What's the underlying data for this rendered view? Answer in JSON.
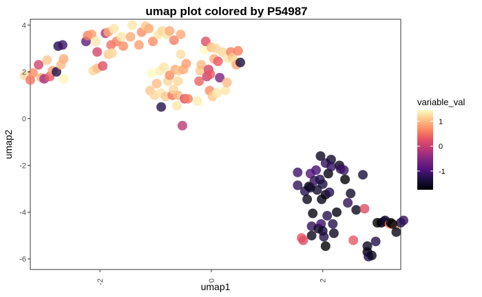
{
  "chart_data": {
    "type": "scatter",
    "title": "umap plot colored by P54987",
    "xlabel": "umap1",
    "ylabel": "umap2",
    "xlim": [
      -3.25,
      3.4
    ],
    "ylim": [
      -6.45,
      4.25
    ],
    "x_ticks": [
      -2,
      0,
      2
    ],
    "y_ticks": [
      4,
      2,
      0,
      -2,
      -4,
      -6
    ],
    "x_tick_labels": [
      "-2",
      "0",
      "2"
    ],
    "y_tick_labels": [
      "4",
      "2",
      "0",
      "-2",
      "-4",
      "-6"
    ],
    "grid": false,
    "legend": {
      "title": "variable_val",
      "position": "right",
      "range": [
        -1.75,
        1.45
      ],
      "ticks": [
        1,
        0,
        -1
      ],
      "tick_labels": [
        "1",
        "0",
        "-1"
      ],
      "colormap": "magma"
    },
    "points": [
      {
        "x": -3.35,
        "y": 1.85,
        "v": 1.2
      },
      {
        "x": -3.25,
        "y": 1.65,
        "v": 0.5
      },
      {
        "x": -3.2,
        "y": 1.95,
        "v": 0.7
      },
      {
        "x": -3.1,
        "y": 2.3,
        "v": 0.1
      },
      {
        "x": -3.05,
        "y": 1.75,
        "v": 0.9
      },
      {
        "x": -3.0,
        "y": 1.7,
        "v": -0.3
      },
      {
        "x": -2.95,
        "y": 2.5,
        "v": 1.1
      },
      {
        "x": -2.9,
        "y": 1.8,
        "v": 0.3
      },
      {
        "x": -2.85,
        "y": 2.05,
        "v": 0.8
      },
      {
        "x": -2.78,
        "y": 2.0,
        "v": -1.3
      },
      {
        "x": -2.7,
        "y": 2.3,
        "v": 1.0
      },
      {
        "x": -2.65,
        "y": 2.55,
        "v": 0.9
      },
      {
        "x": -2.65,
        "y": 1.7,
        "v": 1.4
      },
      {
        "x": -2.75,
        "y": 3.1,
        "v": -1.3
      },
      {
        "x": -2.67,
        "y": 3.15,
        "v": -1.1
      },
      {
        "x": -2.25,
        "y": 3.3,
        "v": -0.8
      },
      {
        "x": -2.22,
        "y": 3.55,
        "v": 0.6
      },
      {
        "x": -2.15,
        "y": 3.6,
        "v": 0.8
      },
      {
        "x": -2.12,
        "y": 2.05,
        "v": 1.2
      },
      {
        "x": -2.08,
        "y": 3.3,
        "v": 1.3
      },
      {
        "x": -2.05,
        "y": 2.15,
        "v": 1.0
      },
      {
        "x": -2.05,
        "y": 2.85,
        "v": 0.1
      },
      {
        "x": -1.95,
        "y": 2.25,
        "v": 0.2
      },
      {
        "x": -1.9,
        "y": 3.65,
        "v": -0.2
      },
      {
        "x": -1.85,
        "y": 3.7,
        "v": 0.9
      },
      {
        "x": -1.85,
        "y": 2.75,
        "v": 1.1
      },
      {
        "x": -1.8,
        "y": 3.15,
        "v": 0.5
      },
      {
        "x": -1.78,
        "y": 2.8,
        "v": 1.2
      },
      {
        "x": -1.75,
        "y": 3.85,
        "v": 1.3
      },
      {
        "x": -1.7,
        "y": 3.3,
        "v": 0.6
      },
      {
        "x": -1.62,
        "y": 3.5,
        "v": 1.3
      },
      {
        "x": -1.58,
        "y": 3.1,
        "v": 0.7
      },
      {
        "x": -1.45,
        "y": 3.5,
        "v": 0.9
      },
      {
        "x": -1.42,
        "y": 4.0,
        "v": 1.3
      },
      {
        "x": -1.3,
        "y": 3.15,
        "v": 0.8
      },
      {
        "x": -1.25,
        "y": 3.7,
        "v": 0.7
      },
      {
        "x": -1.18,
        "y": 3.95,
        "v": 1.1
      },
      {
        "x": -1.12,
        "y": 3.85,
        "v": 0.9
      },
      {
        "x": -1.1,
        "y": 1.2,
        "v": 1.1
      },
      {
        "x": -1.07,
        "y": 1.95,
        "v": 1.45
      },
      {
        "x": -1.05,
        "y": 3.3,
        "v": 0.7
      },
      {
        "x": -1.02,
        "y": 1.0,
        "v": 1.2
      },
      {
        "x": -0.98,
        "y": 1.5,
        "v": 1.0
      },
      {
        "x": -0.95,
        "y": 3.6,
        "v": 1.3
      },
      {
        "x": -0.92,
        "y": 2.05,
        "v": 1.35
      },
      {
        "x": -0.9,
        "y": 1.1,
        "v": 1.3
      },
      {
        "x": -0.9,
        "y": 0.5,
        "v": -1.3
      },
      {
        "x": -0.88,
        "y": 3.75,
        "v": 1.2
      },
      {
        "x": -0.85,
        "y": 2.2,
        "v": 1.3
      },
      {
        "x": -0.82,
        "y": 0.95,
        "v": 1.1
      },
      {
        "x": -0.8,
        "y": 3.6,
        "v": 1.3
      },
      {
        "x": -0.78,
        "y": 1.6,
        "v": 1.2
      },
      {
        "x": -0.75,
        "y": 1.85,
        "v": 0.7
      },
      {
        "x": -0.75,
        "y": 3.75,
        "v": 0.9
      },
      {
        "x": -0.7,
        "y": 1.0,
        "v": 0.5
      },
      {
        "x": -0.68,
        "y": 1.25,
        "v": 1.2
      },
      {
        "x": -0.67,
        "y": 3.35,
        "v": 0.6
      },
      {
        "x": -0.65,
        "y": 2.1,
        "v": 0.9
      },
      {
        "x": -0.62,
        "y": 0.55,
        "v": 1.3
      },
      {
        "x": -0.6,
        "y": 1.0,
        "v": 1.0
      },
      {
        "x": -0.6,
        "y": 1.6,
        "v": 1.2
      },
      {
        "x": -0.58,
        "y": 2.05,
        "v": 1.1
      },
      {
        "x": -0.55,
        "y": 3.6,
        "v": 0.9
      },
      {
        "x": -0.55,
        "y": 2.75,
        "v": 1.25
      },
      {
        "x": -0.52,
        "y": -0.3,
        "v": -0.1
      },
      {
        "x": -0.5,
        "y": 2.1,
        "v": 0.9
      },
      {
        "x": -0.48,
        "y": 0.85,
        "v": 0.2
      },
      {
        "x": -0.45,
        "y": 2.35,
        "v": 0.8
      },
      {
        "x": -0.42,
        "y": 0.85,
        "v": 0.6
      },
      {
        "x": -0.25,
        "y": 0.75,
        "v": 1.35
      },
      {
        "x": -0.22,
        "y": 1.6,
        "v": 0.4
      },
      {
        "x": -0.2,
        "y": 2.05,
        "v": 1.1
      },
      {
        "x": -0.18,
        "y": 2.3,
        "v": 1.0
      },
      {
        "x": -0.12,
        "y": 2.95,
        "v": 1.45
      },
      {
        "x": -0.1,
        "y": 3.3,
        "v": 0.2
      },
      {
        "x": -0.08,
        "y": 1.8,
        "v": 0.0
      },
      {
        "x": -0.05,
        "y": 2.1,
        "v": 0.1
      },
      {
        "x": -0.03,
        "y": 1.2,
        "v": 0.7
      },
      {
        "x": -0.02,
        "y": 1.9,
        "v": 0.3
      },
      {
        "x": 0.0,
        "y": 3.05,
        "v": 1.0
      },
      {
        "x": 0.02,
        "y": 0.95,
        "v": 1.1
      },
      {
        "x": 0.05,
        "y": 2.55,
        "v": 0.9
      },
      {
        "x": 0.08,
        "y": 3.0,
        "v": 1.2
      },
      {
        "x": 0.1,
        "y": 1.1,
        "v": 1.3
      },
      {
        "x": 0.12,
        "y": 2.45,
        "v": 0.3
      },
      {
        "x": 0.15,
        "y": 1.75,
        "v": -0.6
      },
      {
        "x": 0.2,
        "y": 2.85,
        "v": 1.2
      },
      {
        "x": 0.25,
        "y": 1.2,
        "v": 1.3
      },
      {
        "x": 0.28,
        "y": 1.55,
        "v": 1.0
      },
      {
        "x": 0.3,
        "y": 2.6,
        "v": 1.3
      },
      {
        "x": 0.35,
        "y": 2.85,
        "v": 0.6
      },
      {
        "x": 0.38,
        "y": 2.6,
        "v": 1.1
      },
      {
        "x": 0.42,
        "y": 2.45,
        "v": 1.25
      },
      {
        "x": 0.45,
        "y": 2.3,
        "v": 0.9
      },
      {
        "x": 0.48,
        "y": 2.9,
        "v": 0.6
      },
      {
        "x": 0.52,
        "y": 2.4,
        "v": -1.4
      },
      {
        "x": 1.55,
        "y": -2.3,
        "v": -1.1
      },
      {
        "x": 1.55,
        "y": -2.85,
        "v": -1.2
      },
      {
        "x": 1.62,
        "y": -5.1,
        "v": 0.3
      },
      {
        "x": 1.65,
        "y": -5.2,
        "v": 0.2
      },
      {
        "x": 1.68,
        "y": -3.1,
        "v": -1.3
      },
      {
        "x": 1.72,
        "y": -3.45,
        "v": -1.6
      },
      {
        "x": 1.75,
        "y": -2.9,
        "v": -1.75
      },
      {
        "x": 1.78,
        "y": -2.35,
        "v": -0.9
      },
      {
        "x": 1.78,
        "y": -2.95,
        "v": -1.5
      },
      {
        "x": 1.8,
        "y": -4.6,
        "v": -1.2
      },
      {
        "x": 1.8,
        "y": -5.0,
        "v": -1.6
      },
      {
        "x": 1.82,
        "y": -4.05,
        "v": -1.7
      },
      {
        "x": 1.85,
        "y": -2.65,
        "v": -1.2
      },
      {
        "x": 1.88,
        "y": -2.2,
        "v": -1.0
      },
      {
        "x": 1.9,
        "y": -3.05,
        "v": -1.5
      },
      {
        "x": 1.92,
        "y": -4.7,
        "v": -1.6
      },
      {
        "x": 1.95,
        "y": -2.6,
        "v": -1.3
      },
      {
        "x": 1.96,
        "y": -1.6,
        "v": -1.55
      },
      {
        "x": 1.97,
        "y": -4.5,
        "v": -1.1
      },
      {
        "x": 1.98,
        "y": -3.45,
        "v": -1.65
      },
      {
        "x": 2.0,
        "y": -2.8,
        "v": -1.4
      },
      {
        "x": 2.0,
        "y": -4.8,
        "v": -1.5
      },
      {
        "x": 2.02,
        "y": -5.05,
        "v": -1.3
      },
      {
        "x": 2.05,
        "y": -3.25,
        "v": -1.7
      },
      {
        "x": 2.05,
        "y": -1.9,
        "v": -1.2
      },
      {
        "x": 2.05,
        "y": -5.45,
        "v": -1.75
      },
      {
        "x": 2.08,
        "y": -4.15,
        "v": -1.3
      },
      {
        "x": 2.1,
        "y": -2.35,
        "v": -1.7
      },
      {
        "x": 2.12,
        "y": -3.15,
        "v": -1.3
      },
      {
        "x": 2.15,
        "y": -1.75,
        "v": -1.5
      },
      {
        "x": 2.15,
        "y": -2.05,
        "v": -1.2
      },
      {
        "x": 2.18,
        "y": -4.5,
        "v": -1.3
      },
      {
        "x": 2.2,
        "y": -4.9,
        "v": -1.6
      },
      {
        "x": 2.25,
        "y": -4.0,
        "v": -1.7
      },
      {
        "x": 2.3,
        "y": -2.0,
        "v": -1.6
      },
      {
        "x": 2.32,
        "y": -2.15,
        "v": -1.2
      },
      {
        "x": 2.38,
        "y": -2.2,
        "v": -1.1
      },
      {
        "x": 2.4,
        "y": -2.6,
        "v": -1.75
      },
      {
        "x": 2.45,
        "y": -3.6,
        "v": -1.2
      },
      {
        "x": 2.5,
        "y": -3.2,
        "v": -1.5
      },
      {
        "x": 2.55,
        "y": -5.2,
        "v": 0.3
      },
      {
        "x": 2.6,
        "y": -3.9,
        "v": -1.6
      },
      {
        "x": 2.72,
        "y": -2.4,
        "v": -1.4
      },
      {
        "x": 2.75,
        "y": -3.85,
        "v": 0.2
      },
      {
        "x": 2.8,
        "y": -5.7,
        "v": -1.75
      },
      {
        "x": 2.8,
        "y": -5.45,
        "v": -1.6
      },
      {
        "x": 2.82,
        "y": -5.9,
        "v": -1.3
      },
      {
        "x": 2.88,
        "y": -5.85,
        "v": -1.6
      },
      {
        "x": 2.95,
        "y": -5.25,
        "v": -1.3
      },
      {
        "x": 3.05,
        "y": -4.45,
        "v": -1.75
      },
      {
        "x": 3.1,
        "y": -4.4,
        "v": -1.3
      },
      {
        "x": 3.12,
        "y": -4.35,
        "v": -1.5
      },
      {
        "x": 3.2,
        "y": -4.5,
        "v": 0.6
      },
      {
        "x": 3.22,
        "y": -4.45,
        "v": -1.7
      },
      {
        "x": 3.3,
        "y": -4.6,
        "v": 0.9
      },
      {
        "x": 3.32,
        "y": -4.85,
        "v": -1.6
      },
      {
        "x": 3.4,
        "y": -4.45,
        "v": -1.3
      },
      {
        "x": 3.45,
        "y": -4.35,
        "v": -1.2
      },
      {
        "x": 3.25,
        "y": -4.5,
        "v": -1.75
      },
      {
        "x": 2.98,
        "y": -4.45,
        "v": -1.75
      }
    ]
  }
}
